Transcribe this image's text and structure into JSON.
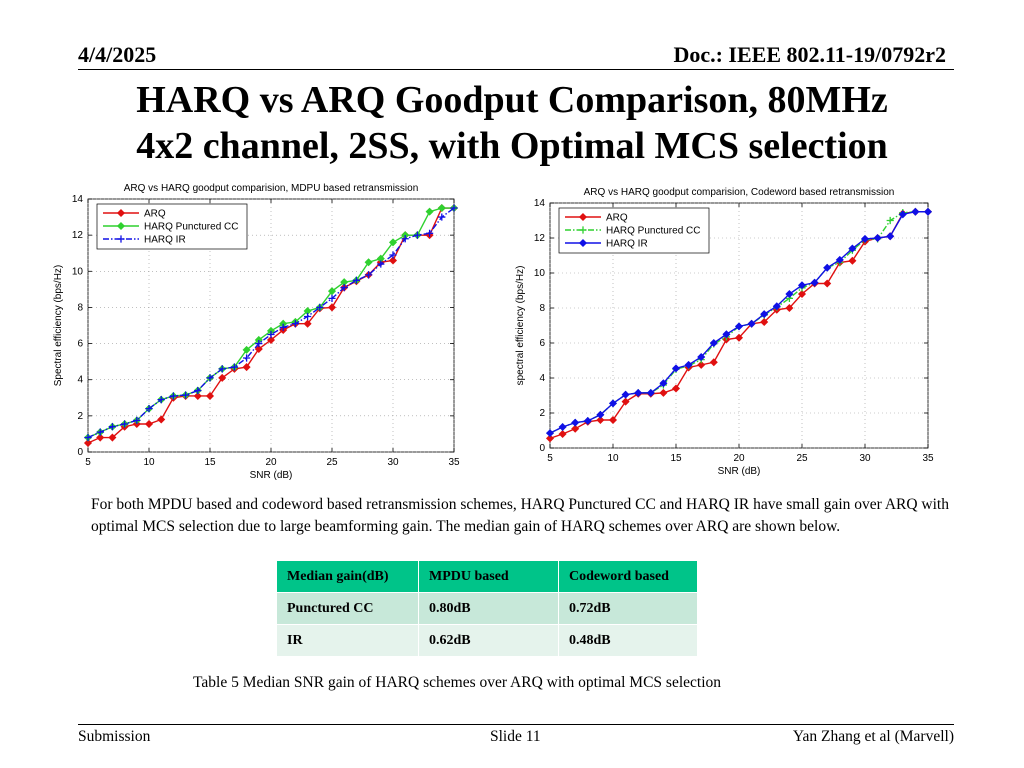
{
  "header": {
    "date": "4/4/2025",
    "doc": "Doc.: IEEE 802.11-19/0792r2"
  },
  "title_line1": "HARQ vs ARQ Goodput Comparison, 80MHz",
  "title_line2": "4x2 channel, 2SS, with Optimal MCS selection",
  "colors": {
    "arq": "#e01010",
    "cc": "#2fd12f",
    "ir": "#1010e6",
    "table_head": "#00c489",
    "table_row1": "#c7e8d9",
    "table_row2": "#e5f3ec"
  },
  "chart_data": [
    {
      "type": "line",
      "title": "ARQ vs HARQ goodput comparision, MDPU based retransmission",
      "xlabel": "SNR (dB)",
      "ylabel": "Spectral efficiency (bps/Hz)",
      "xlim": [
        5,
        35
      ],
      "ylim": [
        0,
        14
      ],
      "xticks": [
        5,
        10,
        15,
        20,
        25,
        30,
        35
      ],
      "yticks": [
        0,
        2,
        4,
        6,
        8,
        10,
        12,
        14
      ],
      "legend_position": "top-left",
      "x": [
        5,
        6,
        7,
        8,
        9,
        10,
        11,
        12,
        13,
        14,
        15,
        16,
        17,
        18,
        19,
        20,
        21,
        22,
        23,
        24,
        25,
        26,
        27,
        28,
        29,
        30,
        31,
        32,
        33,
        34,
        35
      ],
      "series": [
        {
          "name": "ARQ",
          "marker": "diamond",
          "dash": "solid",
          "values": [
            0.5,
            0.8,
            0.8,
            1.4,
            1.55,
            1.55,
            1.8,
            3.0,
            3.1,
            3.1,
            3.1,
            4.1,
            4.6,
            4.7,
            5.7,
            6.2,
            6.75,
            7.1,
            7.1,
            7.95,
            8.0,
            9.1,
            9.45,
            9.8,
            10.5,
            10.6,
            12.0,
            12.0,
            12.0,
            13.5,
            13.5
          ]
        },
        {
          "name": "HARQ Punctured CC",
          "marker": "diamond",
          "dash": "solid",
          "values": [
            0.8,
            1.1,
            1.4,
            1.55,
            1.75,
            2.4,
            2.9,
            3.1,
            3.15,
            3.4,
            4.1,
            4.6,
            4.7,
            5.65,
            6.2,
            6.7,
            7.1,
            7.2,
            7.8,
            8.0,
            8.9,
            9.4,
            9.5,
            10.5,
            10.7,
            11.6,
            12.0,
            12.0,
            13.3,
            13.5,
            13.5
          ]
        },
        {
          "name": "HARQ IR",
          "marker": "plus",
          "dash": "dashdot",
          "values": [
            0.8,
            1.1,
            1.4,
            1.55,
            1.75,
            2.4,
            2.9,
            3.1,
            3.15,
            3.4,
            4.1,
            4.6,
            4.7,
            5.2,
            6.0,
            6.5,
            6.9,
            7.1,
            7.5,
            8.0,
            8.5,
            9.1,
            9.5,
            9.8,
            10.4,
            10.9,
            11.8,
            12.0,
            12.1,
            13.0,
            13.5
          ]
        }
      ]
    },
    {
      "type": "line",
      "title": "ARQ vs HARQ goodput comparision, Codeword based retransmission",
      "xlabel": "SNR (dB)",
      "ylabel": "spectral efficiency (bps/Hz)",
      "xlim": [
        5,
        35
      ],
      "ylim": [
        0,
        14
      ],
      "xticks": [
        5,
        10,
        15,
        20,
        25,
        30,
        35
      ],
      "yticks": [
        0,
        2,
        4,
        6,
        8,
        10,
        12,
        14
      ],
      "legend_position": "top-left",
      "x": [
        5,
        6,
        7,
        8,
        9,
        10,
        11,
        12,
        13,
        14,
        15,
        16,
        17,
        18,
        19,
        20,
        21,
        22,
        23,
        24,
        25,
        26,
        27,
        28,
        29,
        30,
        31,
        32,
        33,
        34,
        35
      ],
      "series": [
        {
          "name": "ARQ",
          "marker": "diamond",
          "dash": "solid",
          "values": [
            0.55,
            0.8,
            1.1,
            1.5,
            1.6,
            1.6,
            2.65,
            3.1,
            3.1,
            3.15,
            3.4,
            4.6,
            4.75,
            4.9,
            6.2,
            6.3,
            7.1,
            7.2,
            7.9,
            8.0,
            8.8,
            9.4,
            9.4,
            10.6,
            10.7,
            11.8,
            12.0,
            12.1,
            13.4,
            13.5,
            13.5
          ]
        },
        {
          "name": "HARQ Punctured CC",
          "marker": "plus",
          "dash": "dashdot",
          "values": [
            0.85,
            1.2,
            1.45,
            1.55,
            1.9,
            2.55,
            3.05,
            3.15,
            3.15,
            3.6,
            4.5,
            4.7,
            5.05,
            5.95,
            6.35,
            6.95,
            7.1,
            7.6,
            8.05,
            8.55,
            9.15,
            9.45,
            10.3,
            10.6,
            11.3,
            11.9,
            11.95,
            13.0,
            13.45,
            13.5,
            13.5
          ]
        },
        {
          "name": "HARQ IR",
          "marker": "diamond",
          "dash": "solid",
          "values": [
            0.85,
            1.2,
            1.45,
            1.55,
            1.9,
            2.55,
            3.05,
            3.15,
            3.15,
            3.7,
            4.55,
            4.75,
            5.2,
            6.0,
            6.5,
            6.95,
            7.1,
            7.65,
            8.1,
            8.8,
            9.3,
            9.45,
            10.3,
            10.75,
            11.4,
            11.95,
            12.0,
            12.1,
            13.35,
            13.5,
            13.5
          ]
        }
      ]
    }
  ],
  "paragraph": "For both MPDU based and codeword based retransmission schemes, HARQ Punctured CC and HARQ IR have small gain over ARQ with optimal MCS selection due to large beamforming gain.  The median gain of HARQ schemes over ARQ are shown below.",
  "table": {
    "headers": [
      "Median gain(dB)",
      "MPDU based",
      "Codeword based"
    ],
    "rows": [
      [
        "Punctured CC",
        "0.80dB",
        "0.72dB"
      ],
      [
        "IR",
        "0.62dB",
        "0.48dB"
      ]
    ]
  },
  "caption": "Table 5 Median SNR gain of HARQ schemes over ARQ with optimal MCS selection",
  "footer": {
    "left": "Submission",
    "center": "Slide 11",
    "right": "Yan Zhang et al (Marvell)"
  }
}
